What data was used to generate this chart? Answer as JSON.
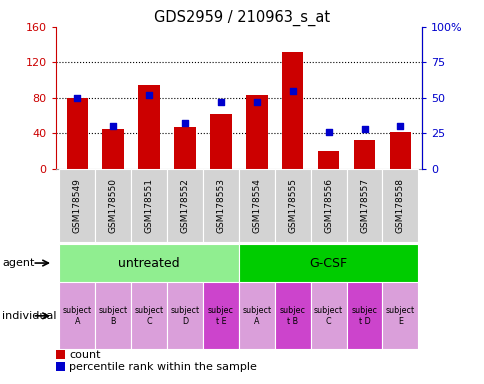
{
  "title": "GDS2959 / 210963_s_at",
  "samples": [
    "GSM178549",
    "GSM178550",
    "GSM178551",
    "GSM178552",
    "GSM178553",
    "GSM178554",
    "GSM178555",
    "GSM178556",
    "GSM178557",
    "GSM178558"
  ],
  "counts": [
    80,
    45,
    95,
    47,
    62,
    83,
    132,
    20,
    33,
    42
  ],
  "percentile_ranks": [
    50,
    30,
    52,
    32,
    47,
    47,
    55,
    26,
    28,
    30
  ],
  "ylim_left": [
    0,
    160
  ],
  "ylim_right": [
    0,
    100
  ],
  "yticks_left": [
    0,
    40,
    80,
    120,
    160
  ],
  "yticks_right": [
    0,
    25,
    50,
    75,
    100
  ],
  "bar_color": "#cc0000",
  "dot_color": "#0000cc",
  "agent_groups": [
    {
      "label": "untreated",
      "start": 0,
      "end": 5,
      "color": "#90ee90"
    },
    {
      "label": "G-CSF",
      "start": 5,
      "end": 10,
      "color": "#00cc00"
    }
  ],
  "individuals": [
    "subject\nA",
    "subject\nB",
    "subject\nC",
    "subject\nD",
    "subjec\nt E",
    "subject\nA",
    "subjec\nt B",
    "subject\nC",
    "subjec\nt D",
    "subject\nE"
  ],
  "individual_colors": [
    "#da9fda",
    "#da9fda",
    "#da9fda",
    "#da9fda",
    "#cc44cc",
    "#da9fda",
    "#cc44cc",
    "#da9fda",
    "#cc44cc",
    "#da9fda"
  ],
  "tick_bg": "#d0d0d0",
  "left_axis_color": "#cc0000",
  "right_axis_color": "#0000cc",
  "legend_count_color": "#cc0000",
  "legend_pct_color": "#0000cc",
  "bar_width": 0.6,
  "dot_size": 25
}
